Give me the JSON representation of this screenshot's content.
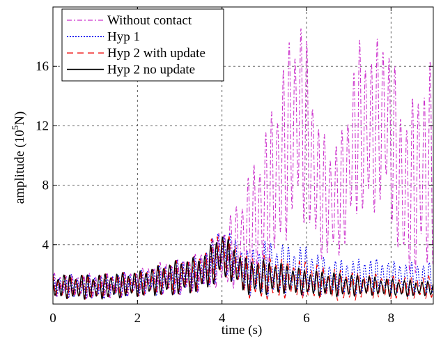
{
  "chart_data": {
    "type": "line",
    "xlabel": "time (s)",
    "ylabel": "amplitude (10",
    "ylabel_sup": "5",
    "ylabel_end": "N)",
    "xlim": [
      0,
      9
    ],
    "ylim": [
      0,
      20
    ],
    "xticks": [
      0,
      2,
      4,
      6,
      8
    ],
    "yticks": [
      4,
      8,
      12,
      16
    ],
    "xtick_labels": [
      "0",
      "2",
      "4",
      "6",
      "8"
    ],
    "ytick_labels": [
      "4",
      "8",
      "12",
      "16"
    ],
    "grid": true,
    "legend_position": "top-left",
    "series": [
      {
        "name": "Without contact",
        "color": "#cc33cc",
        "dash": "7 3 2 3",
        "x": [
          0,
          0.5,
          1,
          1.5,
          2,
          2.5,
          3,
          3.5,
          3.8,
          4.0,
          4.3,
          4.6,
          5.0,
          5.3,
          5.6,
          5.8,
          6.0,
          6.3,
          6.6,
          6.9,
          7.2,
          7.5,
          7.8,
          8.0,
          8.3,
          8.6,
          9.0
        ],
        "upper": [
          2.1,
          2.0,
          2.1,
          2.0,
          2.3,
          2.8,
          3.0,
          3.5,
          4.4,
          5.3,
          6.5,
          8.5,
          11.5,
          14.5,
          18.0,
          19.8,
          18.0,
          12.0,
          10.8,
          12.0,
          18.0,
          17.0,
          18.5,
          17.5,
          12.5,
          14.5,
          16.8
        ],
        "lower": [
          0.4,
          0.5,
          0.3,
          0.4,
          0.6,
          0.7,
          0.6,
          0.8,
          1.0,
          1.2,
          1.0,
          1.2,
          1.6,
          2.8,
          4.8,
          6.2,
          5.0,
          3.0,
          2.8,
          3.5,
          6.0,
          5.5,
          6.8,
          5.5,
          1.6,
          1.8,
          2.4
        ]
      },
      {
        "name": "Hyp 1",
        "color": "#0000ee",
        "dash": "2 2",
        "x": [
          0,
          1,
          2,
          3,
          3.5,
          3.8,
          4.0,
          4.3,
          4.6,
          5.0,
          5.5,
          6.0,
          6.5,
          7.0,
          7.5,
          8.0,
          8.5,
          9.0
        ],
        "upper": [
          2.0,
          2.0,
          2.2,
          3.0,
          3.3,
          4.6,
          5.3,
          4.5,
          3.6,
          4.3,
          4.0,
          3.9,
          3.0,
          3.0,
          3.1,
          2.9,
          2.8,
          2.8
        ],
        "lower": [
          0.4,
          0.3,
          0.5,
          0.6,
          0.8,
          1.2,
          1.8,
          1.5,
          0.6,
          0.5,
          0.6,
          0.5,
          0.5,
          0.6,
          0.6,
          0.7,
          0.5,
          0.7
        ]
      },
      {
        "name": "Hyp 2 with update",
        "color": "#ee0000",
        "dash": "9 6",
        "x": [
          0,
          1,
          2,
          3,
          3.5,
          3.8,
          4.0,
          4.3,
          4.6,
          5.0,
          5.5,
          6.0,
          6.5,
          7.0,
          7.5,
          8.0,
          8.5,
          9.0
        ],
        "upper": [
          2.0,
          2.0,
          2.2,
          3.0,
          3.3,
          4.6,
          5.1,
          4.1,
          3.2,
          3.3,
          3.0,
          2.9,
          2.5,
          2.2,
          2.1,
          1.9,
          1.9,
          1.9
        ],
        "lower": [
          0.4,
          0.3,
          0.5,
          0.6,
          0.8,
          1.2,
          1.8,
          1.4,
          0.4,
          0.3,
          0.4,
          0.3,
          0.3,
          0.2,
          0.4,
          0.3,
          0.3,
          0.4
        ]
      },
      {
        "name": "Hyp 2 no update",
        "color": "#000000",
        "dash": "",
        "x": [
          0,
          1,
          2,
          3,
          3.5,
          3.8,
          4.0,
          4.3,
          4.6,
          5.0,
          5.5,
          6.0,
          6.5,
          7.0,
          7.5,
          8.0,
          8.5,
          9.0
        ],
        "upper": [
          2.0,
          2.0,
          2.2,
          3.0,
          3.2,
          4.2,
          4.9,
          3.8,
          3.0,
          3.0,
          2.7,
          2.3,
          2.2,
          2.0,
          1.9,
          1.7,
          1.6,
          1.5
        ],
        "lower": [
          0.4,
          0.3,
          0.5,
          0.6,
          0.8,
          1.3,
          1.9,
          1.3,
          0.6,
          0.6,
          0.7,
          0.6,
          0.5,
          0.5,
          0.6,
          0.5,
          0.5,
          0.6
        ]
      }
    ]
  }
}
